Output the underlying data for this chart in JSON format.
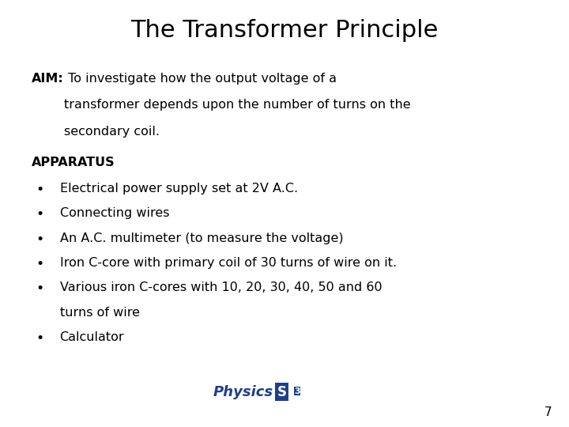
{
  "title": "The Transformer Principle",
  "title_fontsize": 22,
  "background_color": "#ffffff",
  "text_color": "#000000",
  "aim_label": "AIM:",
  "aim_text_line1": " To investigate how the output voltage of a",
  "aim_text_line2": "transformer depends upon the number of turns on the",
  "aim_text_line3": "secondary coil.",
  "apparatus_label": "APPARATUS",
  "bullet_items": [
    "Electrical power supply set at 2V A.C.",
    "Connecting wires",
    "An A.C. multimeter (to measure the voltage)",
    "Iron C-core with primary coil of 30 turns of wire on it.",
    "Various iron C-cores with 10, 20, 30, 40, 50 and 60",
    "turns of wire",
    "Calculator"
  ],
  "bullet_flags": [
    true,
    true,
    true,
    true,
    true,
    false,
    true
  ],
  "page_number": "7",
  "body_fontsize": 11.5,
  "logo_color": "#1e3f8a"
}
